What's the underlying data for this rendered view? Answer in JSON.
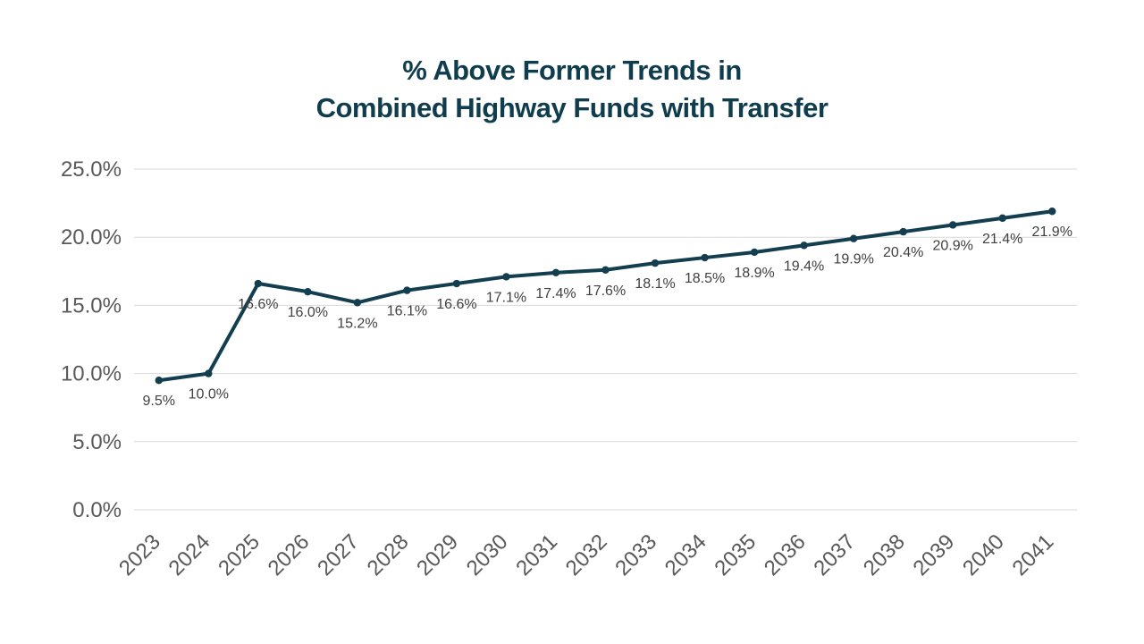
{
  "chart_data": {
    "type": "line",
    "title": "% Above Former Trends in Combined Highway Funds with Transfer",
    "title_lines": [
      "% Above Former Trends in",
      "Combined Highway Funds with Transfer"
    ],
    "xlabel": "",
    "ylabel": "",
    "categories": [
      "2023",
      "2024",
      "2025",
      "2026",
      "2027",
      "2028",
      "2029",
      "2030",
      "2031",
      "2032",
      "2033",
      "2034",
      "2035",
      "2036",
      "2037",
      "2038",
      "2039",
      "2040",
      "2041"
    ],
    "values": [
      9.5,
      10.0,
      16.6,
      16.0,
      15.2,
      16.1,
      16.6,
      17.1,
      17.4,
      17.6,
      18.1,
      18.5,
      18.9,
      19.4,
      19.9,
      20.4,
      20.9,
      21.4,
      21.9
    ],
    "point_labels": [
      "9.5%",
      "10.0%",
      "16.6%",
      "16.0%",
      "15.2%",
      "16.1%",
      "16.6%",
      "17.1%",
      "17.4%",
      "17.6%",
      "18.1%",
      "18.5%",
      "18.9%",
      "19.4%",
      "19.9%",
      "20.4%",
      "20.9%",
      "21.4%",
      "21.9%"
    ],
    "ylim": [
      0,
      25
    ],
    "ytick_interval": 5,
    "ytick_labels": [
      "0.0%",
      "5.0%",
      "10.0%",
      "15.0%",
      "20.0%",
      "25.0%"
    ],
    "grid": true,
    "legend": "none",
    "marker": "circle",
    "colors": {
      "line": "#123e4f",
      "marker": "#123e4f",
      "title": "#103d4e",
      "axis_text": "#595959",
      "data_label": "#404040",
      "gridline": "#d9d9d9"
    }
  }
}
